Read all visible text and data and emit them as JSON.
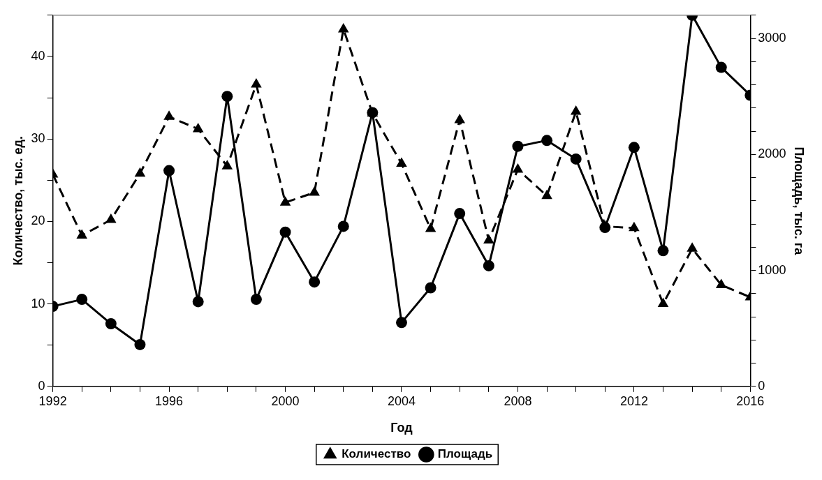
{
  "chart_data": {
    "type": "line",
    "xlabel": "Год",
    "ylabel": "Количество, тыс. ед.",
    "y2label": "Площадь, тыс. га",
    "x": [
      1992,
      1993,
      1994,
      1995,
      1996,
      1997,
      1998,
      1999,
      2000,
      2001,
      2002,
      2003,
      2004,
      2005,
      2006,
      2007,
      2008,
      2009,
      2010,
      2011,
      2012,
      2013,
      2014,
      2015,
      2016
    ],
    "series": [
      {
        "name": "Количество",
        "color": "#000000",
        "marker": "triangle",
        "line_style": "dashed",
        "values": [
          25.7,
          18.3,
          20.2,
          25.8,
          32.7,
          31.2,
          26.7,
          36.6,
          22.3,
          23.5,
          43.3,
          33.1,
          27.0,
          19.1,
          32.3,
          17.7,
          26.3,
          23.1,
          33.3,
          19.4,
          19.2,
          10.0,
          16.7,
          12.3,
          10.8
        ]
      },
      {
        "name": "Площадь",
        "color": "#000000",
        "marker": "circle",
        "line_style": "solid",
        "axis": "y2",
        "values": [
          690,
          750,
          540,
          360,
          1860,
          730,
          2500,
          750,
          1330,
          900,
          1380,
          2360,
          550,
          850,
          1490,
          1040,
          2070,
          2120,
          1960,
          1370,
          2060,
          1170,
          3200,
          2750,
          2510
        ]
      }
    ],
    "xlim": [
      1992,
      2016
    ],
    "xticks": [
      1992,
      {
        "value": 1993,
        "label": null
      },
      {
        "value": 1994,
        "label": null
      },
      {
        "value": 1995,
        "label": null
      },
      1996,
      {
        "value": 1997,
        "label": null
      },
      {
        "value": 1998,
        "label": null
      },
      {
        "value": 1999,
        "label": null
      },
      2000,
      {
        "value": 2001,
        "label": null
      },
      {
        "value": 2002,
        "label": null
      },
      {
        "value": 2003,
        "label": null
      },
      2004,
      {
        "value": 2005,
        "label": null
      },
      {
        "value": 2006,
        "label": null
      },
      {
        "value": 2007,
        "label": null
      },
      2008,
      {
        "value": 2009,
        "label": null
      },
      {
        "value": 2010,
        "label": null
      },
      {
        "value": 2011,
        "label": null
      },
      2012,
      {
        "value": 2013,
        "label": null
      },
      {
        "value": 2014,
        "label": null
      },
      {
        "value": 2015,
        "label": null
      },
      2016
    ],
    "ylim": [
      0,
      45
    ],
    "yticks": [
      0,
      {
        "value": 5,
        "label": null
      },
      10,
      {
        "value": 15,
        "label": null
      },
      20,
      {
        "value": 25,
        "label": null
      },
      30,
      {
        "value": 35,
        "label": null
      },
      40,
      {
        "value": 45,
        "label": null
      }
    ],
    "y2lim": [
      0,
      3200
    ],
    "y2ticks": [
      0,
      {
        "value": 200,
        "label": null
      },
      {
        "value": 400,
        "label": null
      },
      {
        "value": 600,
        "label": null
      },
      {
        "value": 800,
        "label": null
      },
      1000,
      {
        "value": 1200,
        "label": null
      },
      {
        "value": 1400,
        "label": null
      },
      {
        "value": 1600,
        "label": null
      },
      {
        "value": 1800,
        "label": null
      },
      2000,
      {
        "value": 2200,
        "label": null
      },
      {
        "value": 2400,
        "label": null
      },
      {
        "value": 2600,
        "label": null
      },
      {
        "value": 2800,
        "label": null
      },
      3000,
      {
        "value": 3200,
        "label": null
      }
    ],
    "grid": false,
    "legend": "bottom"
  }
}
